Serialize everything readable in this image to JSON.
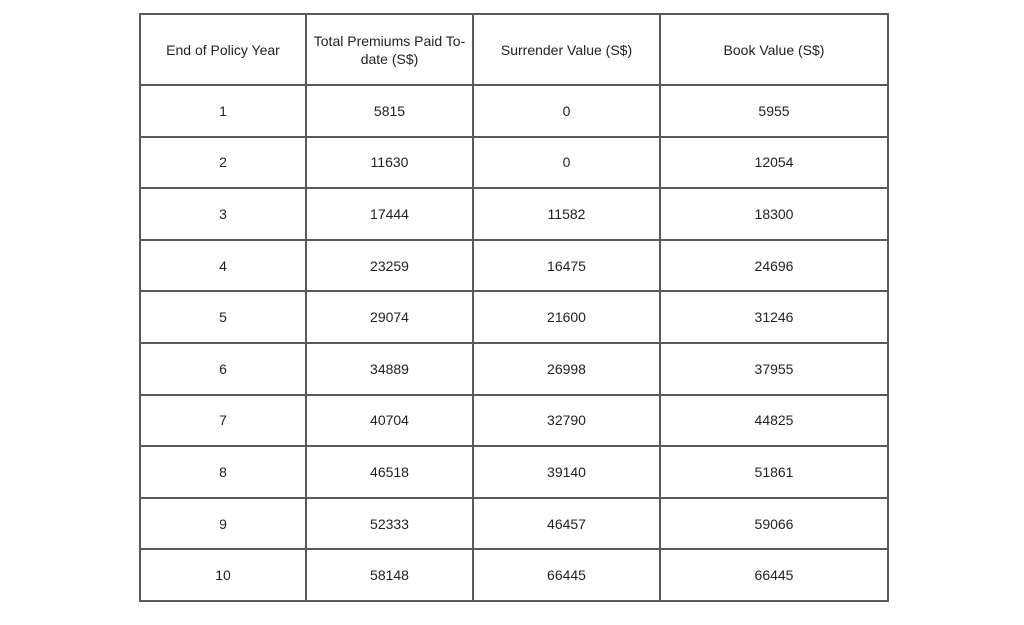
{
  "table": {
    "headers": [
      "End of Policy Year",
      "Total Premiums Paid To-date (S$)",
      "Surrender Value (S$)",
      "Book Value (S$)"
    ],
    "rows": [
      [
        1,
        5815,
        0,
        5955
      ],
      [
        2,
        11630,
        0,
        12054
      ],
      [
        3,
        17444,
        11582,
        18300
      ],
      [
        4,
        23259,
        16475,
        24696
      ],
      [
        5,
        29074,
        21600,
        31246
      ],
      [
        6,
        34889,
        26998,
        37955
      ],
      [
        7,
        40704,
        32790,
        44825
      ],
      [
        8,
        46518,
        39140,
        51861
      ],
      [
        9,
        52333,
        46457,
        59066
      ],
      [
        10,
        58148,
        66445,
        66445
      ]
    ]
  }
}
